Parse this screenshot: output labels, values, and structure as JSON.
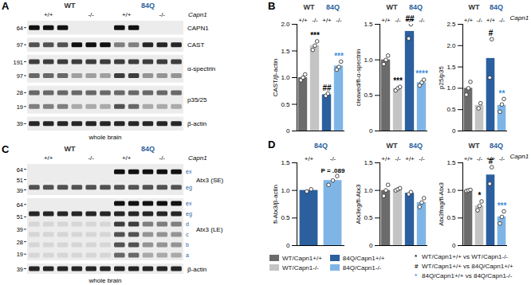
{
  "panel_letters": [
    "A",
    "B",
    "C",
    "D"
  ],
  "groups": [
    {
      "name": "WT",
      "color": "#333333"
    },
    {
      "name": "84Q",
      "color": "#2b5f9e"
    }
  ],
  "blots": [
    {
      "lane_groups": [
        "WT",
        "WT",
        "WT",
        "WT",
        "WT",
        "WT",
        "84Q",
        "84Q",
        "84Q",
        "84Q",
        "84Q"
      ],
      "lane_genotypes": [
        "+/+",
        "+/+",
        "+/+",
        "-/-",
        "-/-",
        "-/-",
        "+/+",
        "+/+",
        "-/-",
        "-/-",
        "-/-"
      ],
      "gene": "Capn1",
      "footer": "whole brain",
      "rows": [
        {
          "label": "CAPN1",
          "markers": [
            64
          ],
          "bands": [
            {
              "lanes": [
                1,
                1,
                1,
                0,
                0,
                0,
                1,
                1,
                0,
                0,
                0
              ]
            }
          ]
        },
        {
          "label": "CAST",
          "markers": [
            97
          ],
          "bands": [
            {
              "lanes": [
                0.7,
                0.7,
                0.7,
                1,
                1,
                1,
                0.5,
                0.5,
                0.9,
                0.9,
                0.9
              ]
            }
          ]
        },
        {
          "label": "α-spectrin",
          "markers": [
            191,
            97
          ],
          "bands": [
            {
              "lanes": [
                0.8,
                0.8,
                0.8,
                0.8,
                0.8,
                0.8,
                0.8,
                0.8,
                0.8,
                0.8,
                0.8
              ]
            },
            {
              "lanes": [
                0.6,
                0.6,
                0.6,
                0.35,
                0.35,
                0.35,
                0.8,
                0.8,
                0.4,
                0.4,
                0.4
              ]
            }
          ]
        },
        {
          "label": "p35/25",
          "markers": [
            28,
            19
          ],
          "bands": [
            {
              "lanes": [
                0.6,
                0.6,
                0.6,
                0.6,
                0.6,
                0.6,
                0.6,
                0.6,
                0.6,
                0.6,
                0.6
              ]
            },
            {
              "lanes": [
                0.5,
                0.5,
                0.5,
                0.3,
                0.3,
                0.3,
                0.7,
                0.6,
                0.3,
                0.3,
                0.3
              ]
            }
          ]
        },
        {
          "label": "β-actin",
          "markers": [
            39
          ],
          "bands": [
            {
              "lanes": [
                0.9,
                0.9,
                0.9,
                0.9,
                0.9,
                0.9,
                0.9,
                0.9,
                0.9,
                0.9,
                0.9
              ]
            }
          ]
        }
      ]
    },
    {
      "lane_groups": [
        "WT",
        "WT",
        "WT",
        "WT",
        "WT",
        "WT",
        "84Q",
        "84Q",
        "84Q",
        "84Q",
        "84Q"
      ],
      "lane_genotypes": [
        "+/+",
        "+/+",
        "+/+",
        "-/-",
        "-/-",
        "-/-",
        "+/+",
        "+/+",
        "-/-",
        "-/-",
        "-/-"
      ],
      "gene": "Capn1",
      "footer": "whole brain",
      "rows": [
        {
          "label": "Atx3 (SE)",
          "markers": [
            64,
            51,
            39
          ],
          "bands": [
            {
              "label": "ex",
              "lanes": [
                0,
                0,
                0,
                0,
                0,
                0,
                1,
                1,
                1,
                1,
                1
              ]
            },
            {
              "label": "eg",
              "lanes": [
                0.7,
                0.7,
                0.7,
                0.7,
                0.7,
                0.7,
                0.7,
                0.7,
                0.7,
                0.7,
                0.7
              ]
            }
          ]
        },
        {
          "label": "Atx3 (LE)",
          "markers": [
            64,
            51,
            39,
            28,
            19
          ],
          "bands": [
            {
              "label": "ex",
              "lanes": [
                0,
                0,
                0,
                0,
                0,
                0,
                1,
                1,
                1,
                1,
                1
              ]
            },
            {
              "label": "eg",
              "lanes": [
                0.9,
                0.9,
                0.9,
                0.9,
                0.9,
                0.9,
                0.9,
                0.9,
                0.9,
                0.9,
                0.9
              ]
            },
            {
              "label": "d",
              "lanes": [
                0.1,
                0.1,
                0.1,
                0.1,
                0.1,
                0.1,
                0.8,
                0.8,
                0.5,
                0.5,
                0.5
              ]
            },
            {
              "label": "c",
              "lanes": [
                0.1,
                0.1,
                0.1,
                0.1,
                0.1,
                0.1,
                0.7,
                0.7,
                0.4,
                0.4,
                0.4
              ]
            },
            {
              "label": "b",
              "lanes": [
                0.1,
                0.1,
                0.1,
                0.1,
                0.1,
                0.1,
                0.7,
                0.7,
                0.4,
                0.4,
                0.4
              ]
            },
            {
              "label": "a",
              "lanes": [
                0.1,
                0.1,
                0.1,
                0.1,
                0.1,
                0.1,
                0.6,
                0.6,
                0.3,
                0.3,
                0.3
              ]
            }
          ]
        },
        {
          "label": "β-actin",
          "markers": [
            39
          ],
          "bands": [
            {
              "lanes": [
                0.9,
                0.9,
                0.9,
                0.9,
                0.9,
                0.9,
                0.9,
                0.9,
                0.9,
                0.9,
                0.9
              ]
            }
          ]
        }
      ]
    }
  ],
  "chart_data": [
    {
      "type": "bar",
      "y_label": "CAST/β-actin",
      "categories": [
        "+/+",
        "-/-",
        "+/+",
        "-/-"
      ],
      "groups": [
        "WT",
        "WT",
        "84Q",
        "84Q"
      ],
      "colors": [
        "#6b6b6b",
        "#c4c4c4",
        "#2b5f9e",
        "#7fb5e6"
      ],
      "values": [
        1.0,
        1.6,
        0.68,
        1.22
      ],
      "points": [
        [
          0.95,
          1.0,
          1.06
        ],
        [
          1.52,
          1.6,
          1.68
        ],
        [
          0.66,
          0.7
        ],
        [
          1.15,
          1.2,
          1.3
        ]
      ],
      "annotations": [
        {
          "index": 1,
          "text": "***",
          "color": "#000000"
        },
        {
          "index": 2,
          "text": "##",
          "color": "#000000"
        },
        {
          "index": 3,
          "text": "***",
          "color": "#3d8fdc"
        }
      ],
      "ylim": [
        0,
        2
      ],
      "yticks": [
        0,
        0.5,
        {
          "value": 1,
          "label": "1.0"
        },
        1.5,
        {
          "value": 2,
          "label": "2.0"
        }
      ]
    },
    {
      "type": "bar",
      "y_label": "cleaved/fl-α-spectrin",
      "categories": [
        "+/+",
        "-/-",
        "+/+",
        "-/-"
      ],
      "groups": [
        "WT",
        "WT",
        "84Q",
        "84Q"
      ],
      "colors": [
        "#6b6b6b",
        "#c4c4c4",
        "#2b5f9e",
        "#7fb5e6"
      ],
      "values": [
        1.0,
        0.6,
        1.4,
        0.68
      ],
      "points": [
        [
          0.94,
          1.0,
          1.06
        ],
        [
          0.57,
          0.6,
          0.62
        ],
        [
          1.3,
          1.5
        ],
        [
          0.64,
          0.68,
          0.72
        ]
      ],
      "annotations": [
        {
          "index": 1,
          "text": "***",
          "color": "#000000"
        },
        {
          "index": 2,
          "text": "##",
          "color": "#000000"
        },
        {
          "index": 3,
          "text": "****",
          "color": "#3d8fdc"
        }
      ],
      "ylim": [
        0,
        1.5
      ],
      "yticks": [
        0,
        0.5,
        {
          "value": 1,
          "label": "1.0"
        },
        1.5
      ]
    },
    {
      "type": "bar",
      "y_label": "p25/p35",
      "categories": [
        "+/+",
        "-/-",
        "+/+",
        "-/-"
      ],
      "groups": [
        "WT",
        "WT",
        "84Q",
        "84Q"
      ],
      "colors": [
        "#6b6b6b",
        "#c4c4c4",
        "#2b5f9e",
        "#7fb5e6"
      ],
      "values": [
        1.0,
        0.6,
        1.7,
        0.6
      ],
      "points": [
        [
          0.85,
          1.0,
          1.15
        ],
        [
          0.53,
          0.65
        ],
        [
          1.25,
          2.15
        ],
        [
          0.45,
          0.62,
          0.75
        ]
      ],
      "annotations": [
        {
          "index": 2,
          "text": "#",
          "color": "#000000"
        },
        {
          "index": 3,
          "text": "**",
          "color": "#3d8fdc"
        }
      ],
      "gene": "Capn1",
      "ylim": [
        0,
        2.5
      ],
      "yticks": [
        0,
        0.5,
        {
          "value": 1,
          "label": "1.0"
        },
        1.5,
        {
          "value": 2,
          "label": "2.0"
        },
        2.5
      ]
    },
    {
      "type": "bar",
      "y_label": "fl-Atx3/β-actin",
      "categories": [
        "+/+",
        "-/-"
      ],
      "groups": [
        "84Q",
        "84Q"
      ],
      "colors": [
        "#2b5f9e",
        "#7fb5e6"
      ],
      "values": [
        1.0,
        1.18
      ],
      "points": [
        [
          0.98,
          1.02
        ],
        [
          1.1,
          1.18,
          1.26
        ]
      ],
      "annotations": [
        {
          "index": 1,
          "text": "P = .089",
          "color": "#000000"
        }
      ],
      "ylim": [
        0,
        1.5
      ],
      "yticks": [
        0,
        0.5,
        {
          "value": 1,
          "label": "1.0"
        },
        1.5
      ]
    },
    {
      "type": "bar",
      "y_label": "Atx3eg/fl-Atx3",
      "categories": [
        "+/+",
        "-/-",
        "+/+",
        "-/-"
      ],
      "groups": [
        "WT",
        "WT",
        "84Q",
        "84Q"
      ],
      "colors": [
        "#6b6b6b",
        "#c4c4c4",
        "#2b5f9e",
        "#7fb5e6"
      ],
      "values": [
        1.0,
        1.02,
        0.95,
        0.78
      ],
      "points": [
        [
          0.9,
          1.0,
          1.1
        ],
        [
          1.0,
          1.02,
          1.04
        ],
        [
          0.93,
          0.97
        ],
        [
          0.7,
          0.78,
          0.86
        ]
      ],
      "annotations": [],
      "ylim": [
        0,
        1.5
      ],
      "yticks": [
        0,
        0.5,
        {
          "value": 1,
          "label": "1.0"
        },
        1.5
      ]
    },
    {
      "type": "bar",
      "y_label": "Atx3frag/fl-Atx3",
      "categories": [
        "+/+",
        "-/-",
        "+/+",
        "-/-"
      ],
      "groups": [
        "WT",
        "WT",
        "84Q",
        "84Q"
      ],
      "colors": [
        "#6b6b6b",
        "#c4c4c4",
        "#2b5f9e",
        "#7fb5e6"
      ],
      "values": [
        1.0,
        0.72,
        1.28,
        0.52
      ],
      "points": [
        [
          0.99,
          1.0,
          1.01
        ],
        [
          0.64,
          0.72,
          0.8
        ],
        [
          1.12,
          1.42
        ],
        [
          0.4,
          0.52,
          0.62
        ]
      ],
      "annotations": [
        {
          "index": 1,
          "text": "*",
          "color": "#000000"
        },
        {
          "index": 2,
          "text": "#",
          "color": "#000000"
        },
        {
          "index": 3,
          "text": "***",
          "color": "#3d8fdc"
        }
      ],
      "gene": "Capn1",
      "ylim": [
        0,
        1.5
      ],
      "yticks": [
        0,
        0.5,
        {
          "value": 1,
          "label": "1.0"
        },
        1.5
      ]
    }
  ],
  "key": {
    "series": [
      {
        "name": "WT/Capn1+/+",
        "color": "#6b6b6b"
      },
      {
        "name": "WT/Capn1-/-",
        "color": "#c4c4c4"
      },
      {
        "name": "84Q/Capn1+/+",
        "color": "#2b5f9e"
      },
      {
        "name": "84Q/Capn1-/-",
        "color": "#7fb5e6"
      }
    ],
    "significance": [
      {
        "symbol": "*",
        "color": "#000000",
        "text": "WT/Capn1+/+ vs WT/Capn1-/-"
      },
      {
        "symbol": "#",
        "color": "#000000",
        "text": "WT/Capn1+/+ vs 84Q/Capn1+/+"
      },
      {
        "symbol": "*",
        "color": "#3d8fdc",
        "text": "84Q/Capn1+/+ vs 84Q/Capn1-/-"
      }
    ]
  }
}
